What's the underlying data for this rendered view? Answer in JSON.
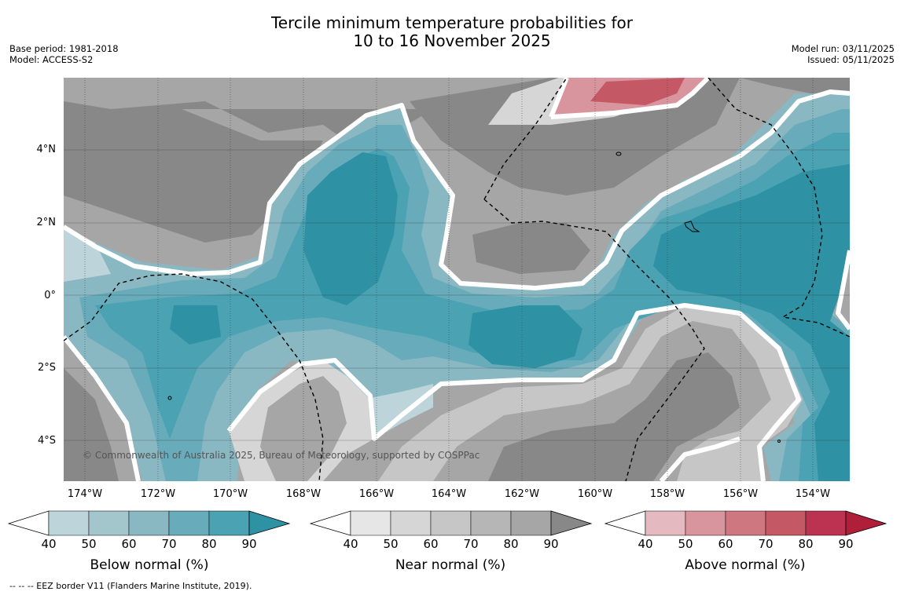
{
  "title_line1": "Tercile minimum temperature probabilities for",
  "title_line2": "10 to 16 November 2025",
  "base_period": "Base period: 1981-2018",
  "model": "Model: ACCESS-S2",
  "model_run": "Model run: 03/11/2025",
  "issued": "Issued: 05/11/2025",
  "lat_labels": [
    "4°N",
    "2°N",
    "0°",
    "2°S",
    "4°S"
  ],
  "lon_labels": [
    "174°W",
    "172°W",
    "170°W",
    "168°W",
    "166°W",
    "164°W",
    "162°W",
    "160°W",
    "158°W",
    "156°W",
    "154°W"
  ],
  "copyright": "© Commonwealth of Australia 2025, Bureau of Meteorology, supported by COSPPac",
  "colorbars": {
    "below": {
      "label": "Below normal (%)",
      "ticks": [
        "40",
        "50",
        "60",
        "70",
        "80",
        "90"
      ],
      "colors": [
        "#bcd4da",
        "#a3c6cd",
        "#89b8c3",
        "#68abba",
        "#4aa2b3",
        "#2f91a4"
      ]
    },
    "near": {
      "label": "Near normal (%)",
      "ticks": [
        "40",
        "50",
        "60",
        "70",
        "80",
        "90"
      ],
      "colors": [
        "#e6e6e6",
        "#d6d6d6",
        "#c6c6c6",
        "#b6b6b6",
        "#a6a6a6",
        "#888888"
      ]
    },
    "above": {
      "label": "Above normal (%)",
      "ticks": [
        "40",
        "50",
        "60",
        "70",
        "80",
        "90"
      ],
      "colors": [
        "#e4b9bf",
        "#d9959d",
        "#cf7780",
        "#c45965",
        "#bb3350",
        "#b01f3a"
      ]
    }
  },
  "footer": "--  --  -- EEZ border V11 (Flanders Marine Institute, 2019)."
}
